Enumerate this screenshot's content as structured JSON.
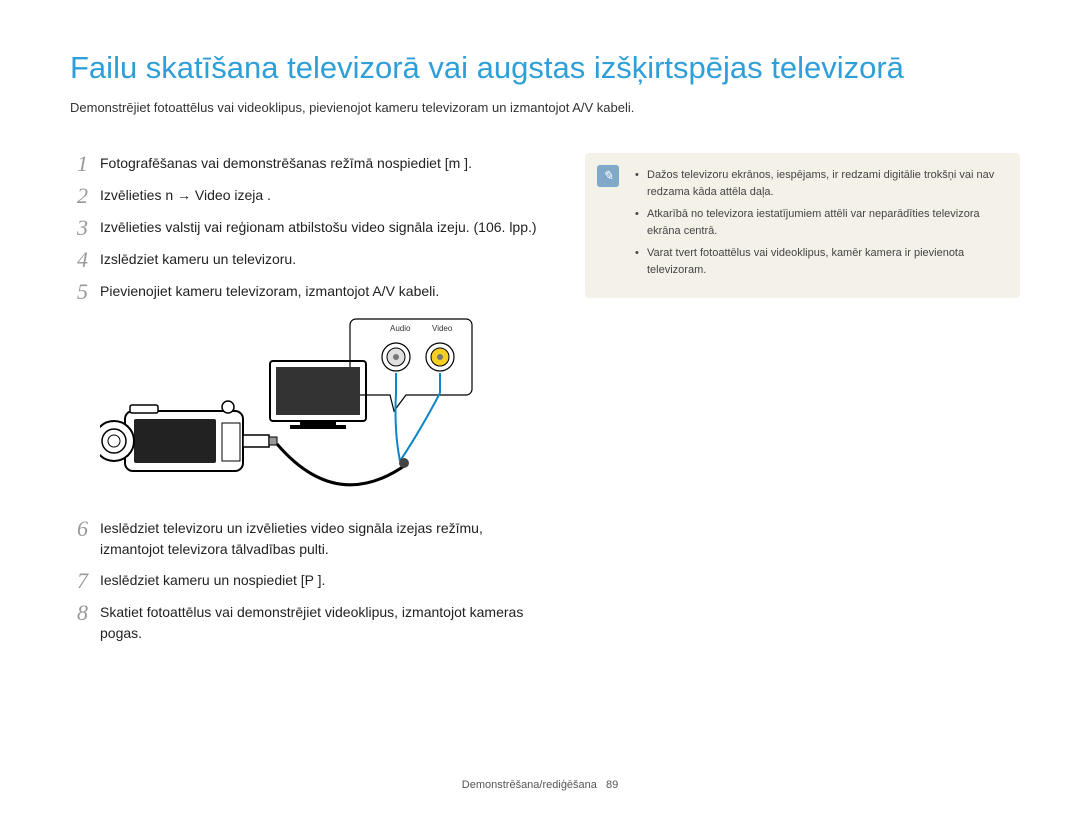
{
  "title": "Failu skatīšana televizorā vai augstas izšķirtspējas televizorā",
  "subtitle": "Demonstrējiet fotoattēlus vai videoklipus, pievienojot kameru televizoram un izmantojot A/V kabeli.",
  "steps": [
    {
      "n": "1",
      "text": "Fotografēšanas vai demonstrēšanas režīmā nospiediet [m      ]."
    },
    {
      "n": "2",
      "text": "Izvēlieties n   → Video izeja ."
    },
    {
      "n": "3",
      "text": "Izvēlieties valstij vai reģionam atbilstošu video signāla izeju. (106. lpp.)"
    },
    {
      "n": "4",
      "text": "Izslēdziet kameru un televizoru."
    },
    {
      "n": "5",
      "text": "Pievienojiet kameru televizoram, izmantojot A/V kabeli."
    }
  ],
  "steps2": [
    {
      "n": "6",
      "text": "Ieslēdziet televizoru un izvēlieties video signāla izejas režīmu, izmantojot televizora tālvadības pulti."
    },
    {
      "n": "7",
      "text": "Ieslēdziet kameru un nospiediet [P   ]."
    },
    {
      "n": "8",
      "text": "Skatiet fotoattēlus vai demonstrējiet videoklipus, izmantojot kameras pogas."
    }
  ],
  "diagram": {
    "audio_label": "Audio",
    "video_label": "Video",
    "audio_color": "#e0e0e0",
    "video_color": "#f5d020",
    "cable_color": "#0b86c8"
  },
  "info": {
    "items": [
      "Dažos televizoru ekrānos, iespējams, ir redzami digitālie trokšņi vai nav redzama kāda attēla daļa.",
      "Atkarībā no televizora iestatījumiem attēli var neparādīties televizora ekrāna centrā.",
      "Varat tvert fotoattēlus vai videoklipus, kamēr kamera ir pievienota televizoram."
    ]
  },
  "footer": {
    "section": "Demonstrēšana/rediģēšana",
    "page": "89"
  }
}
